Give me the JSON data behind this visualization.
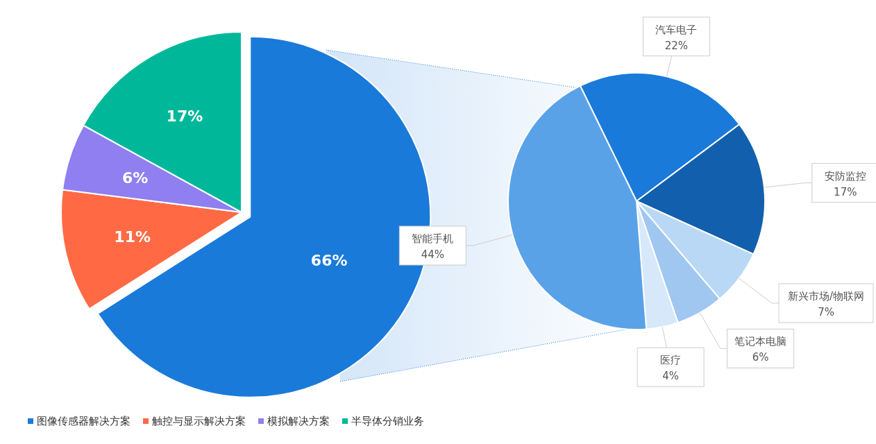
{
  "chart_data": [
    {
      "type": "pie",
      "categories": [
        "图像传感器解决方案",
        "触控与显示解决方案",
        "模拟解决方案",
        "半导体分销业务"
      ],
      "values": [
        66,
        11,
        6,
        17
      ],
      "colors": [
        "#1a7ad9",
        "#ff6a45",
        "#8f7ff0",
        "#00b899"
      ],
      "value_labels": [
        "66%",
        "11%",
        "6%",
        "17%"
      ],
      "legend": "bottom left"
    },
    {
      "type": "pie",
      "categories": [
        "汽车电子",
        "安防监控",
        "新兴市场/物联网",
        "笔记本电脑",
        "医疗",
        "智能手机"
      ],
      "values": [
        22,
        17,
        7,
        6,
        4,
        44
      ],
      "colors": [
        "#1a7ad9",
        "#1260ad",
        "#b9d8f5",
        "#9fc7f0",
        "#d6e8fa",
        "#5aa2e8"
      ],
      "value_labels": [
        "22%",
        "17%",
        "7%",
        "6%",
        "4%",
        "44%"
      ],
      "legend": false
    }
  ]
}
